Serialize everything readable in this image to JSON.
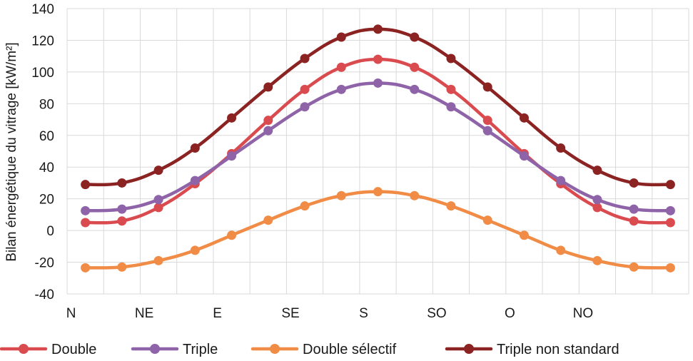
{
  "chart_data": {
    "type": "line",
    "title": "",
    "xlabel": "",
    "ylabel": "Bilan énergétique du vitrage [kW/m²]",
    "ylim": [
      -40,
      140
    ],
    "yticks": [
      -40,
      -20,
      0,
      20,
      40,
      60,
      80,
      100,
      120,
      140
    ],
    "x_tick_labels": [
      "N",
      "",
      "NE",
      "",
      "E",
      "",
      "SE",
      "",
      "S",
      "",
      "SO",
      "",
      "O",
      "",
      "NO",
      "",
      ""
    ],
    "grid": true,
    "legend_position": "bottom",
    "series": [
      {
        "name": "Double",
        "color": "#d94b4f",
        "values": [
          5,
          6,
          14.5,
          29.5,
          48.5,
          69.5,
          89,
          103,
          108,
          103,
          89,
          69.5,
          48.5,
          29.5,
          14.5,
          6,
          5
        ]
      },
      {
        "name": "Triple",
        "color": "#8e63a8",
        "values": [
          12.5,
          13.5,
          19.5,
          31.5,
          47,
          63,
          78,
          89,
          93,
          89,
          78,
          63,
          47,
          31.5,
          19.5,
          13.5,
          12.5
        ]
      },
      {
        "name": "Double sélectif",
        "color": "#f08c46",
        "values": [
          -23.5,
          -23,
          -19,
          -12.5,
          -3,
          6.5,
          15.5,
          22,
          24.5,
          22,
          15.5,
          6.5,
          -3,
          -12.5,
          -19,
          -23,
          -23.5
        ]
      },
      {
        "name": "Triple non standard",
        "color": "#8b2323",
        "values": [
          29,
          30,
          38,
          52,
          71,
          90.5,
          108.5,
          122,
          127,
          122,
          108.5,
          90.5,
          71,
          52,
          38,
          30,
          29
        ]
      }
    ]
  }
}
